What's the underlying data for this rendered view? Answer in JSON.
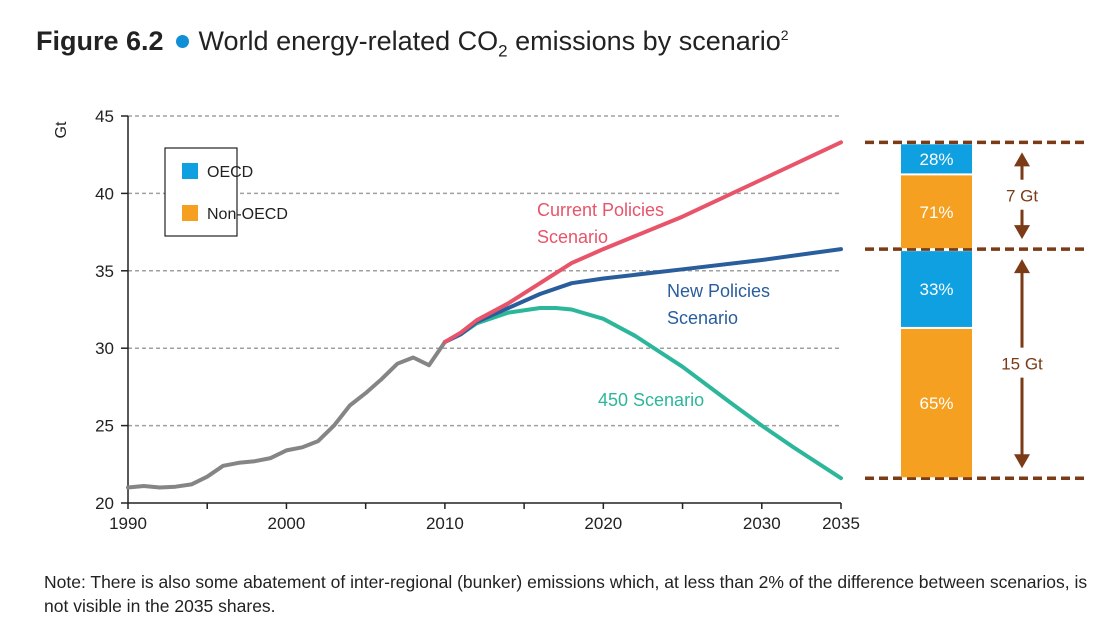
{
  "title": {
    "figure_label": "Figure 6.2",
    "text_before_sub": "World energy-related CO",
    "subscript": "2",
    "text_after_sub": " emissions by scenario",
    "superscript": "2",
    "bullet_color": "#0f8fd6"
  },
  "note": "Note: There is also some abatement of inter-regional (bunker) emissions which, at less than 2% of the difference between scenarios, is not visible in the 2035 shares.",
  "chart_data": [
    {
      "type": "line",
      "ylabel": "Gt",
      "xlim": [
        1990,
        2035
      ],
      "ylim": [
        20,
        45
      ],
      "x_ticks": [
        1990,
        2000,
        2010,
        2020,
        2030,
        2035
      ],
      "y_ticks": [
        20,
        25,
        30,
        35,
        40,
        45
      ],
      "grid": "horizontal dashed",
      "series": [
        {
          "key": "historical",
          "color": "#858585",
          "x": [
            1990,
            1991,
            1992,
            1993,
            1994,
            1995,
            1996,
            1997,
            1998,
            1999,
            2000,
            2001,
            2002,
            2003,
            2004,
            2005,
            2006,
            2007,
            2008,
            2009,
            2010
          ],
          "y": [
            21.0,
            21.1,
            21.0,
            21.05,
            21.2,
            21.7,
            22.4,
            22.6,
            22.7,
            22.9,
            23.4,
            23.6,
            24.0,
            25.0,
            26.3,
            27.1,
            28.0,
            29.0,
            29.4,
            28.9,
            30.4
          ]
        },
        {
          "name": "Current Policies Scenario",
          "color": "#e8546a",
          "x": [
            2010,
            2011,
            2012,
            2014,
            2016,
            2018,
            2020,
            2025,
            2030,
            2035
          ],
          "y": [
            30.4,
            31.0,
            31.8,
            32.9,
            34.2,
            35.5,
            36.4,
            38.5,
            40.9,
            43.3
          ]
        },
        {
          "name": "New Policies Scenario",
          "color": "#2a5d9c",
          "x": [
            2010,
            2011,
            2012,
            2014,
            2016,
            2018,
            2020,
            2025,
            2030,
            2035
          ],
          "y": [
            30.4,
            30.9,
            31.7,
            32.6,
            33.5,
            34.2,
            34.5,
            35.1,
            35.7,
            36.4
          ]
        },
        {
          "name": "450 Scenario",
          "color": "#2cb79a",
          "x": [
            2010,
            2011,
            2012,
            2014,
            2016,
            2017,
            2018,
            2020,
            2022,
            2025,
            2028,
            2030,
            2032,
            2035
          ],
          "y": [
            30.4,
            30.9,
            31.6,
            32.3,
            32.6,
            32.6,
            32.5,
            31.9,
            30.8,
            28.8,
            26.5,
            25.0,
            23.6,
            21.6
          ]
        }
      ],
      "labels": {
        "cps": [
          "Current Policies",
          "Scenario"
        ],
        "nps": [
          "New Policies",
          "Scenario"
        ],
        "s450": "450 Scenario"
      },
      "legend": {
        "placement": "top-left",
        "items": [
          {
            "label": "OECD",
            "color": "#0ea0e0"
          },
          {
            "label": "Non-OECD",
            "color": "#f5a021"
          }
        ]
      }
    },
    {
      "type": "bar",
      "stacked": true,
      "year": 2035,
      "annotation_color": "#7a3b16",
      "stacks": [
        {
          "gap_label": "7 Gt",
          "from": 36.4,
          "to": 43.3,
          "segments": [
            {
              "region": "Non-OECD",
              "share": "71%",
              "value": 71
            },
            {
              "region": "OECD",
              "share": "28%",
              "value": 28
            }
          ]
        },
        {
          "gap_label": "15 Gt",
          "from": 21.6,
          "to": 36.4,
          "segments": [
            {
              "region": "Non-OECD",
              "share": "65%",
              "value": 65
            },
            {
              "region": "OECD",
              "share": "33%",
              "value": 33
            }
          ]
        }
      ]
    }
  ]
}
